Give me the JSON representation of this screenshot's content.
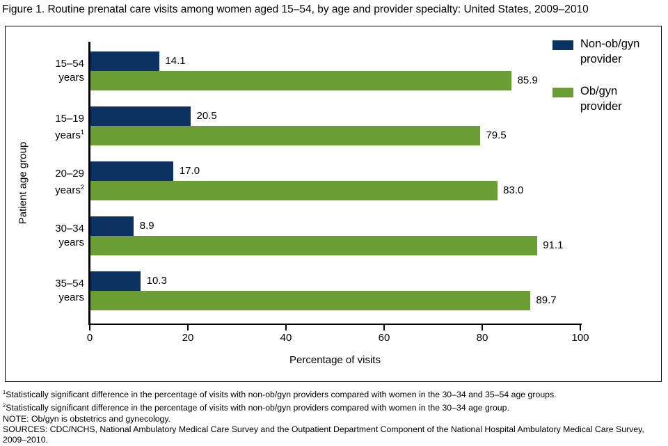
{
  "title": "Figure 1. Routine prenatal care visits among women aged 15–54, by age and provider specialty: United States, 2009–2010",
  "chart_data": {
    "type": "bar",
    "orientation": "horizontal",
    "title": "Figure 1. Routine prenatal care visits among women aged 15–54, by age and provider specialty: United States, 2009–2010",
    "categories": [
      "15–54 years",
      "15–19 years",
      "20–29 years",
      "30–34 years",
      "35–54 years"
    ],
    "category_footnote_markers": [
      "",
      "1",
      "2",
      "",
      ""
    ],
    "series": [
      {
        "name": "Non-ob/gyn provider",
        "label_lines": [
          "Non-ob/gyn",
          "provider"
        ],
        "color": "#0d3161",
        "values": [
          14.1,
          20.5,
          17.0,
          8.9,
          10.3
        ]
      },
      {
        "name": "Ob/gyn provider",
        "label_lines": [
          "Ob/gyn",
          "provider"
        ],
        "color": "#6a9e35",
        "values": [
          85.9,
          79.5,
          83.0,
          91.1,
          89.7
        ]
      }
    ],
    "xlabel": "Percentage of visits",
    "ylabel": "Patient age group",
    "xlim": [
      0,
      100
    ],
    "xticks": [
      0,
      20,
      40,
      60,
      80,
      100
    ],
    "grid": false,
    "legend_position": "top-right",
    "value_label_decimals": 1
  },
  "colors": {
    "non_obgyn_bar": "#0d3161",
    "obgyn_bar": "#6a9e35",
    "axis": "#000000",
    "text": "#000000",
    "background": "#ffffff"
  },
  "footnotes": [
    {
      "marker": "1",
      "text": "Statistically significant difference in the percentage of visits with non-ob/gyn providers compared with women in the 30–34 and 35–54 age groups."
    },
    {
      "marker": "2",
      "text": "Statistically significant difference in the percentage of visits with non-ob/gyn providers compared with women in the 30–34 age group."
    },
    {
      "marker": "",
      "text": "NOTE: Ob/gyn is obstetrics and gynecology."
    },
    {
      "marker": "",
      "text": "SOURCES: CDC/NCHS, National Ambulatory Medical Care Survey and the Outpatient Department Component of the National Hospital Ambulatory Medical Care Survey, 2009–2010."
    }
  ]
}
